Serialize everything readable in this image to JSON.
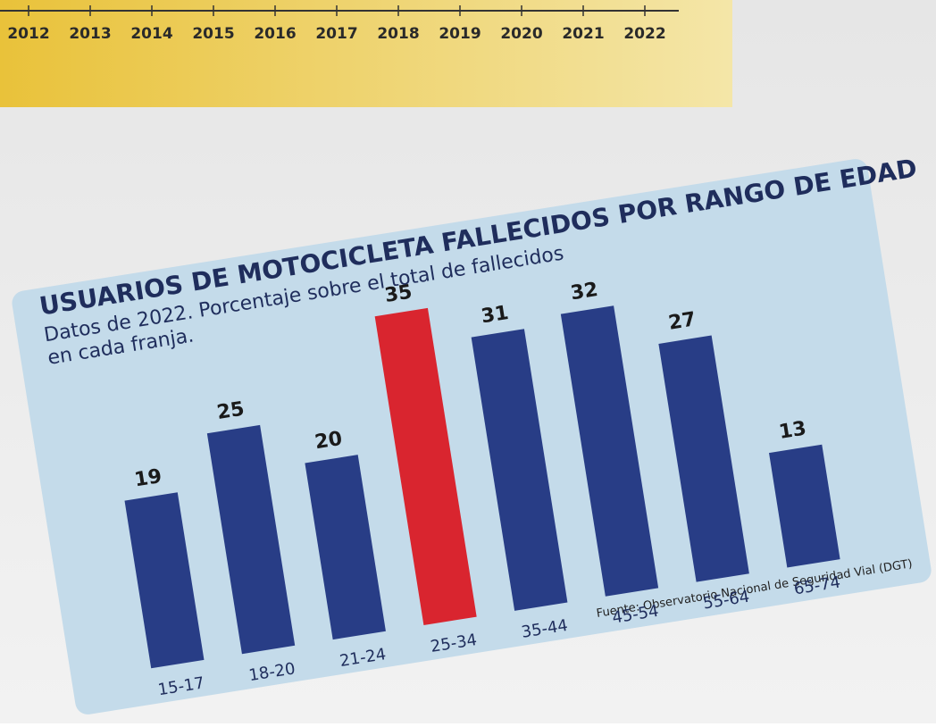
{
  "timeline": {
    "years": [
      "2012",
      "2013",
      "2014",
      "2015",
      "2016",
      "2017",
      "2018",
      "2019",
      "2020",
      "2021",
      "2022"
    ]
  },
  "chart_data": {
    "type": "bar",
    "title": "USUARIOS DE MOTOCICLETA FALLECIDOS POR RANGO DE EDAD",
    "subtitle": [
      "Datos de 2022. Porcentaje sobre el total de fallecidos",
      "en cada franja."
    ],
    "categories": [
      "15-17",
      "18-20",
      "21-24",
      "25-34",
      "35-44",
      "45-54",
      "55-64",
      "65-74"
    ],
    "values": [
      19,
      25,
      20,
      35,
      31,
      32,
      27,
      13
    ],
    "colors": [
      "#283d86",
      "#283d86",
      "#283d86",
      "#d9252f",
      "#283d86",
      "#283d86",
      "#283d86",
      "#283d86"
    ],
    "source": "Fuente: Observatorio Nacional de Seguridad Vial (DGT)"
  }
}
